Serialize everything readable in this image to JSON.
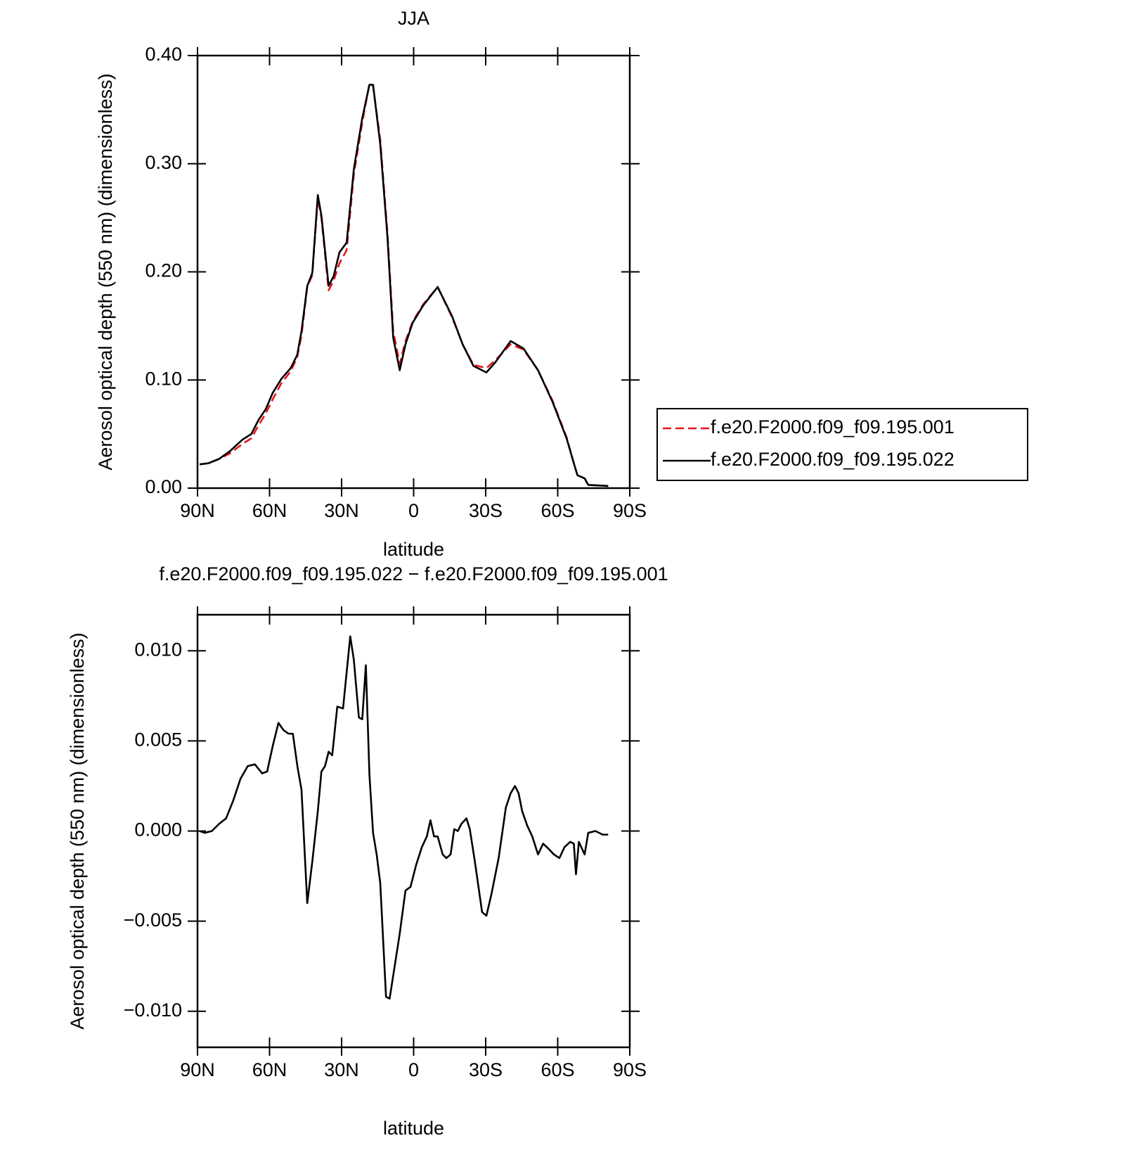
{
  "chart_data": [
    {
      "type": "line",
      "title": "JJA",
      "y_label": "Aerosol optical depth (550 nm) (dimensionless)",
      "x_label": "latitude",
      "xlim": [
        90,
        -90
      ],
      "ylim": [
        0,
        0.4
      ],
      "xticks": [
        {
          "value": 90,
          "label": "90N"
        },
        {
          "value": 60,
          "label": "60N"
        },
        {
          "value": 30,
          "label": "30N"
        },
        0,
        {
          "value": -30,
          "label": "30S"
        },
        {
          "value": -60,
          "label": "60S"
        },
        {
          "value": -90,
          "label": "90S"
        }
      ],
      "yticks": [
        {
          "value": 0,
          "label": "0.00"
        },
        {
          "value": 0.1,
          "label": "0.10"
        },
        {
          "value": 0.2,
          "label": "0.20"
        },
        {
          "value": 0.3,
          "label": "0.30"
        },
        {
          "value": 0.4,
          "label": "0.40"
        }
      ],
      "legend": "right",
      "x": [
        89.1,
        85.5,
        81.0,
        76.6,
        71.2,
        67.6,
        64.6,
        61.6,
        58.7,
        55.1,
        51.2,
        48.5,
        46.7,
        44.3,
        42.2,
        39.9,
        38.4,
        35.4,
        33.3,
        30.9,
        27.9,
        24.9,
        21.4,
        18.4,
        16.9,
        13.9,
        10.9,
        8.5,
        5.8,
        3.4,
        0.4,
        -4.0,
        -10.0,
        -16.0,
        -20.4,
        -24.9,
        -30.3,
        -33.9,
        -40.4,
        -45.8,
        -51.8,
        -57.8,
        -63.7,
        -66.7,
        -68.2,
        -71.2,
        -72.7,
        -81.0
      ],
      "series": [
        {
          "name": "f.e20.F2000.f09_f09.195.001",
          "color": "#e8141c",
          "dash": true,
          "values": [
            0.022,
            0.023,
            0.027,
            0.032,
            0.041,
            0.046,
            0.058,
            0.069,
            0.082,
            0.097,
            0.108,
            0.121,
            0.141,
            0.186,
            0.197,
            0.268,
            0.25,
            0.183,
            0.192,
            0.208,
            0.22,
            0.29,
            0.338,
            0.374,
            0.372,
            0.322,
            0.236,
            0.145,
            0.115,
            0.136,
            0.154,
            0.17,
            0.186,
            0.158,
            0.133,
            0.114,
            0.111,
            0.118,
            0.133,
            0.128,
            0.109,
            0.081,
            0.047,
            0.023,
            0.012,
            0.009,
            0.003,
            0.002
          ]
        },
        {
          "name": "f.e20.F2000.f09_f09.195.022",
          "color": "#000000",
          "dash": false,
          "values": [
            0.022,
            0.023,
            0.027,
            0.034,
            0.045,
            0.05,
            0.063,
            0.073,
            0.088,
            0.101,
            0.111,
            0.123,
            0.145,
            0.187,
            0.199,
            0.271,
            0.252,
            0.187,
            0.196,
            0.218,
            0.227,
            0.295,
            0.342,
            0.373,
            0.373,
            0.318,
            0.232,
            0.139,
            0.109,
            0.133,
            0.153,
            0.169,
            0.186,
            0.159,
            0.133,
            0.113,
            0.107,
            0.116,
            0.136,
            0.129,
            0.109,
            0.08,
            0.046,
            0.023,
            0.012,
            0.009,
            0.003,
            0.002
          ]
        }
      ]
    },
    {
      "type": "line",
      "title": "f.e20.F2000.f09_f09.195.022 − f.e20.F2000.f09_f09.195.001",
      "y_label": "Aerosol optical depth (550 nm) (dimensionless)",
      "x_label": "latitude",
      "xlim": [
        90,
        -90
      ],
      "ylim": [
        -0.012,
        0.012
      ],
      "xticks": [
        {
          "value": 90,
          "label": "90N"
        },
        {
          "value": 60,
          "label": "60N"
        },
        {
          "value": 30,
          "label": "30N"
        },
        0,
        {
          "value": -30,
          "label": "30S"
        },
        {
          "value": -60,
          "label": "60S"
        },
        {
          "value": -90,
          "label": "90S"
        }
      ],
      "yticks": [
        {
          "value": -0.01,
          "label": "−0.010"
        },
        {
          "value": -0.005,
          "label": "−0.005"
        },
        {
          "value": 0,
          "label": "0.000"
        },
        {
          "value": 0.005,
          "label": "0.005"
        },
        {
          "value": 0.01,
          "label": "0.010"
        }
      ],
      "x": [
        89.1,
        87.0,
        84.0,
        81.0,
        78.1,
        75.1,
        72.1,
        69.1,
        66.1,
        63.1,
        61.0,
        58.7,
        56.3,
        54.2,
        52.1,
        50.3,
        48.3,
        46.7,
        44.3,
        42.2,
        39.9,
        38.4,
        36.9,
        35.4,
        33.9,
        31.8,
        29.4,
        26.4,
        24.9,
        22.8,
        21.4,
        19.9,
        18.4,
        16.9,
        15.4,
        13.9,
        11.5,
        10.0,
        7.9,
        5.8,
        3.4,
        1.3,
        -1.0,
        -3.4,
        -5.5,
        -7.0,
        -8.5,
        -10.0,
        -12.1,
        -13.6,
        -15.4,
        -16.9,
        -18.4,
        -19.9,
        -22.0,
        -23.4,
        -25.5,
        -28.5,
        -30.3,
        -32.4,
        -35.4,
        -38.4,
        -40.4,
        -42.2,
        -43.7,
        -45.2,
        -47.3,
        -49.4,
        -51.8,
        -53.9,
        -56.3,
        -58.4,
        -60.7,
        -62.8,
        -65.2,
        -66.7,
        -67.6,
        -68.8,
        -71.2,
        -72.7,
        -75.7,
        -78.7,
        -81.0
      ],
      "series": [
        {
          "color": "#000000",
          "dash": false,
          "values": [
            0,
            -0.0001,
            0,
            0.0004,
            0.0007,
            0.0017,
            0.0029,
            0.0036,
            0.0037,
            0.0032,
            0.0033,
            0.0047,
            0.006,
            0.0056,
            0.0054,
            0.0054,
            0.0035,
            0.0023,
            -0.004,
            -0.0017,
            0.0011,
            0.0033,
            0.0036,
            0.0044,
            0.0042,
            0.0069,
            0.0068,
            0.0108,
            0.0095,
            0.0063,
            0.0062,
            0.0092,
            0.0031,
            -0.0001,
            -0.0013,
            -0.0029,
            -0.0092,
            -0.0093,
            -0.0075,
            -0.0057,
            -0.0033,
            -0.0031,
            -0.0019,
            -0.0009,
            -0.0003,
            0.0006,
            -0.0003,
            -0.0003,
            -0.0013,
            -0.0015,
            -0.0013,
            0.0001,
            0,
            0.0004,
            0.0007,
            0.0001,
            -0.0017,
            -0.0045,
            -0.0047,
            -0.0035,
            -0.0015,
            0.0013,
            0.0021,
            0.0025,
            0.0021,
            0.0011,
            0.0003,
            -0.0003,
            -0.0013,
            -0.0007,
            -0.001,
            -0.0013,
            -0.0015,
            -0.0009,
            -0.0006,
            -0.0007,
            -0.0024,
            -0.0006,
            -0.0013,
            -0.0001,
            0,
            -0.0002,
            -0.0002
          ]
        }
      ]
    }
  ]
}
